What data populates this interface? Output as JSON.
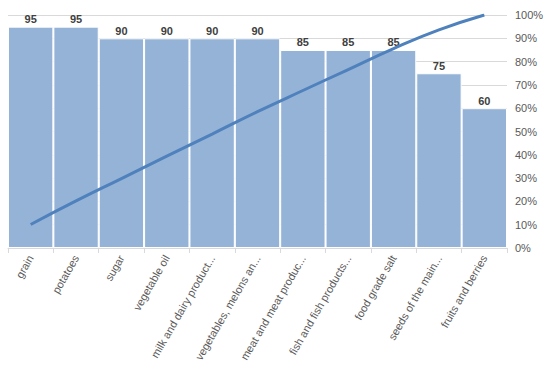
{
  "chart_data": {
    "type": "bar",
    "categories": [
      "grain",
      "potatoes",
      "sugar",
      "vegetable oil",
      "milk and dairy product...",
      "vegetables, melons an...",
      "meat and meat produc...",
      "fish and fish products...",
      "food grade salt",
      "seeds of the main...",
      "fruits and berries"
    ],
    "series": [
      {
        "type": "bar",
        "color": "#95b3d7",
        "data_labels": true,
        "values": [
          95,
          95,
          90,
          90,
          90,
          90,
          85,
          85,
          85,
          75,
          60
        ]
      },
      {
        "type": "line",
        "axis": "y2",
        "color": "#4f81bd",
        "line_style": "solid",
        "values": [
          10.1,
          20.2,
          29.8,
          39.4,
          48.9,
          58.5,
          67.6,
          76.6,
          85.6,
          93.6,
          100
        ]
      }
    ],
    "ylim": [
      0,
      100
    ],
    "y2lim": [
      0,
      100
    ],
    "y2ticks": [
      {
        "value": 0,
        "label": "0%"
      },
      {
        "value": 10,
        "label": "10%"
      },
      {
        "value": 20,
        "label": "20%"
      },
      {
        "value": 30,
        "label": "30%"
      },
      {
        "value": 40,
        "label": "40%"
      },
      {
        "value": 50,
        "label": "50%"
      },
      {
        "value": 60,
        "label": "60%"
      },
      {
        "value": 70,
        "label": "70%"
      },
      {
        "value": 80,
        "label": "80%"
      },
      {
        "value": 90,
        "label": "90%"
      },
      {
        "value": 100,
        "label": "100%"
      }
    ],
    "grid": true
  }
}
